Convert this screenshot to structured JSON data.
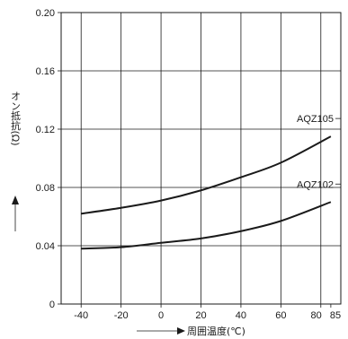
{
  "chart_data": {
    "type": "line",
    "xlabel": "周囲温度(℃)",
    "ylabel": "オン抵抗(Ω)",
    "xlim": [
      -50,
      90
    ],
    "ylim": [
      0,
      0.2
    ],
    "x_ticks": [
      -40,
      -20,
      0,
      20,
      40,
      60,
      80,
      85
    ],
    "x_tick_labels": [
      "-40",
      "-20",
      "0",
      "20",
      "40",
      "60",
      "80",
      "85"
    ],
    "y_ticks": [
      0,
      0.04,
      0.08,
      0.12,
      0.16,
      0.2
    ],
    "y_tick_labels": [
      "0",
      "0.04",
      "0.08",
      "0.12",
      "0.16",
      "0.20"
    ],
    "x_grid": [
      -40,
      -20,
      0,
      20,
      40,
      60,
      80
    ],
    "y_grid": [
      0.04,
      0.08,
      0.12,
      0.16
    ],
    "grid": true,
    "series": [
      {
        "name": "AQZ105",
        "x": [
          -40,
          -20,
          0,
          20,
          40,
          60,
          85
        ],
        "y": [
          0.062,
          0.066,
          0.071,
          0.078,
          0.087,
          0.097,
          0.115
        ]
      },
      {
        "name": "AQZ102",
        "x": [
          -40,
          -20,
          0,
          20,
          40,
          60,
          85
        ],
        "y": [
          0.038,
          0.039,
          0.042,
          0.045,
          0.05,
          0.057,
          0.07
        ]
      }
    ]
  }
}
